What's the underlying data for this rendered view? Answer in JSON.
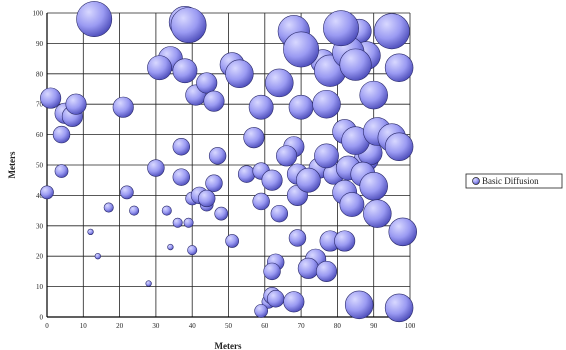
{
  "chart_data": {
    "type": "bubble",
    "xlabel": "Meters",
    "ylabel": "Meters",
    "xlim": [
      0,
      100
    ],
    "ylim": [
      0,
      100
    ],
    "x_ticks": [
      0,
      10,
      20,
      30,
      40,
      50,
      60,
      70,
      80,
      90,
      100
    ],
    "y_ticks": [
      0,
      10,
      20,
      30,
      40,
      50,
      60,
      70,
      80,
      90,
      100
    ],
    "grid": true,
    "legend_position": "right",
    "series": [
      {
        "name": "Basic Diffusion",
        "color": "#9a9af2",
        "points": [
          {
            "x": 13,
            "y": 98,
            "size": 9
          },
          {
            "x": 39,
            "y": 96,
            "size": 9
          },
          {
            "x": 38,
            "y": 97,
            "size": 8
          },
          {
            "x": 68,
            "y": 94,
            "size": 8
          },
          {
            "x": 69,
            "y": 90,
            "size": 7
          },
          {
            "x": 70,
            "y": 88,
            "size": 9
          },
          {
            "x": 81,
            "y": 95,
            "size": 9
          },
          {
            "x": 86,
            "y": 94,
            "size": 6
          },
          {
            "x": 95,
            "y": 94,
            "size": 9
          },
          {
            "x": 34,
            "y": 85,
            "size": 6
          },
          {
            "x": 31,
            "y": 82,
            "size": 6
          },
          {
            "x": 38,
            "y": 81,
            "size": 6
          },
          {
            "x": 51,
            "y": 83,
            "size": 6
          },
          {
            "x": 53,
            "y": 80,
            "size": 7
          },
          {
            "x": 64,
            "y": 77,
            "size": 7
          },
          {
            "x": 76,
            "y": 84,
            "size": 6
          },
          {
            "x": 78,
            "y": 81,
            "size": 8
          },
          {
            "x": 83,
            "y": 87,
            "size": 8
          },
          {
            "x": 85,
            "y": 83,
            "size": 8
          },
          {
            "x": 88,
            "y": 86,
            "size": 7
          },
          {
            "x": 97,
            "y": 82,
            "size": 7
          },
          {
            "x": 1,
            "y": 72,
            "size": 5
          },
          {
            "x": 5,
            "y": 67,
            "size": 5
          },
          {
            "x": 7,
            "y": 66,
            "size": 5
          },
          {
            "x": 8,
            "y": 70,
            "size": 5
          },
          {
            "x": 4,
            "y": 60,
            "size": 4
          },
          {
            "x": 21,
            "y": 69,
            "size": 5
          },
          {
            "x": 41,
            "y": 73,
            "size": 5
          },
          {
            "x": 44,
            "y": 77,
            "size": 5
          },
          {
            "x": 46,
            "y": 71,
            "size": 5
          },
          {
            "x": 59,
            "y": 69,
            "size": 6
          },
          {
            "x": 70,
            "y": 69,
            "size": 6
          },
          {
            "x": 77,
            "y": 70,
            "size": 7
          },
          {
            "x": 90,
            "y": 73,
            "size": 7
          },
          {
            "x": 82,
            "y": 61,
            "size": 6
          },
          {
            "x": 85,
            "y": 58,
            "size": 7
          },
          {
            "x": 88,
            "y": 52,
            "size": 6
          },
          {
            "x": 91,
            "y": 61,
            "size": 7
          },
          {
            "x": 95,
            "y": 59,
            "size": 7
          },
          {
            "x": 97,
            "y": 56,
            "size": 7
          },
          {
            "x": 89,
            "y": 54,
            "size": 6
          },
          {
            "x": 57,
            "y": 59,
            "size": 5
          },
          {
            "x": 68,
            "y": 56,
            "size": 5
          },
          {
            "x": 66,
            "y": 53,
            "size": 5
          },
          {
            "x": 77,
            "y": 53,
            "size": 6
          },
          {
            "x": 83,
            "y": 49,
            "size": 6
          },
          {
            "x": 87,
            "y": 47,
            "size": 6
          },
          {
            "x": 90,
            "y": 43,
            "size": 7
          },
          {
            "x": 37,
            "y": 56,
            "size": 4
          },
          {
            "x": 47,
            "y": 53,
            "size": 4
          },
          {
            "x": 30,
            "y": 49,
            "size": 4
          },
          {
            "x": 4,
            "y": 48,
            "size": 3
          },
          {
            "x": 55,
            "y": 47,
            "size": 4
          },
          {
            "x": 59,
            "y": 48,
            "size": 4
          },
          {
            "x": 62,
            "y": 45,
            "size": 5
          },
          {
            "x": 69,
            "y": 47,
            "size": 5
          },
          {
            "x": 72,
            "y": 45,
            "size": 6
          },
          {
            "x": 75,
            "y": 49,
            "size": 5
          },
          {
            "x": 79,
            "y": 47,
            "size": 5
          },
          {
            "x": 37,
            "y": 46,
            "size": 4
          },
          {
            "x": 46,
            "y": 44,
            "size": 4
          },
          {
            "x": 42,
            "y": 40,
            "size": 4
          },
          {
            "x": 44,
            "y": 39,
            "size": 4
          },
          {
            "x": 40,
            "y": 39,
            "size": 3
          },
          {
            "x": 0,
            "y": 41,
            "size": 3
          },
          {
            "x": 22,
            "y": 41,
            "size": 3
          },
          {
            "x": 59,
            "y": 38,
            "size": 4
          },
          {
            "x": 69,
            "y": 40,
            "size": 5
          },
          {
            "x": 82,
            "y": 41,
            "size": 6
          },
          {
            "x": 84,
            "y": 37,
            "size": 6
          },
          {
            "x": 91,
            "y": 34,
            "size": 7
          },
          {
            "x": 44,
            "y": 37,
            "size": 3
          },
          {
            "x": 48,
            "y": 34,
            "size": 3
          },
          {
            "x": 64,
            "y": 34,
            "size": 4
          },
          {
            "x": 17,
            "y": 36,
            "size": 2
          },
          {
            "x": 24,
            "y": 35,
            "size": 2
          },
          {
            "x": 33,
            "y": 35,
            "size": 2
          },
          {
            "x": 36,
            "y": 31,
            "size": 2
          },
          {
            "x": 39,
            "y": 31,
            "size": 2
          },
          {
            "x": 12,
            "y": 28,
            "size": 1
          },
          {
            "x": 51,
            "y": 25,
            "size": 3
          },
          {
            "x": 69,
            "y": 26,
            "size": 4
          },
          {
            "x": 78,
            "y": 25,
            "size": 5
          },
          {
            "x": 82,
            "y": 25,
            "size": 5
          },
          {
            "x": 98,
            "y": 28,
            "size": 7
          },
          {
            "x": 34,
            "y": 23,
            "size": 1
          },
          {
            "x": 40,
            "y": 22,
            "size": 2
          },
          {
            "x": 63,
            "y": 18,
            "size": 4
          },
          {
            "x": 74,
            "y": 19,
            "size": 5
          },
          {
            "x": 72,
            "y": 16,
            "size": 5
          },
          {
            "x": 77,
            "y": 15,
            "size": 5
          },
          {
            "x": 62,
            "y": 15,
            "size": 4
          },
          {
            "x": 14,
            "y": 20,
            "size": 1
          },
          {
            "x": 28,
            "y": 11,
            "size": 1
          },
          {
            "x": 62,
            "y": 7,
            "size": 4
          },
          {
            "x": 63,
            "y": 6,
            "size": 4
          },
          {
            "x": 61,
            "y": 5,
            "size": 3
          },
          {
            "x": 68,
            "y": 5,
            "size": 5
          },
          {
            "x": 86,
            "y": 4,
            "size": 7
          },
          {
            "x": 97,
            "y": 3,
            "size": 7
          },
          {
            "x": 59,
            "y": 2,
            "size": 3
          }
        ]
      }
    ]
  }
}
